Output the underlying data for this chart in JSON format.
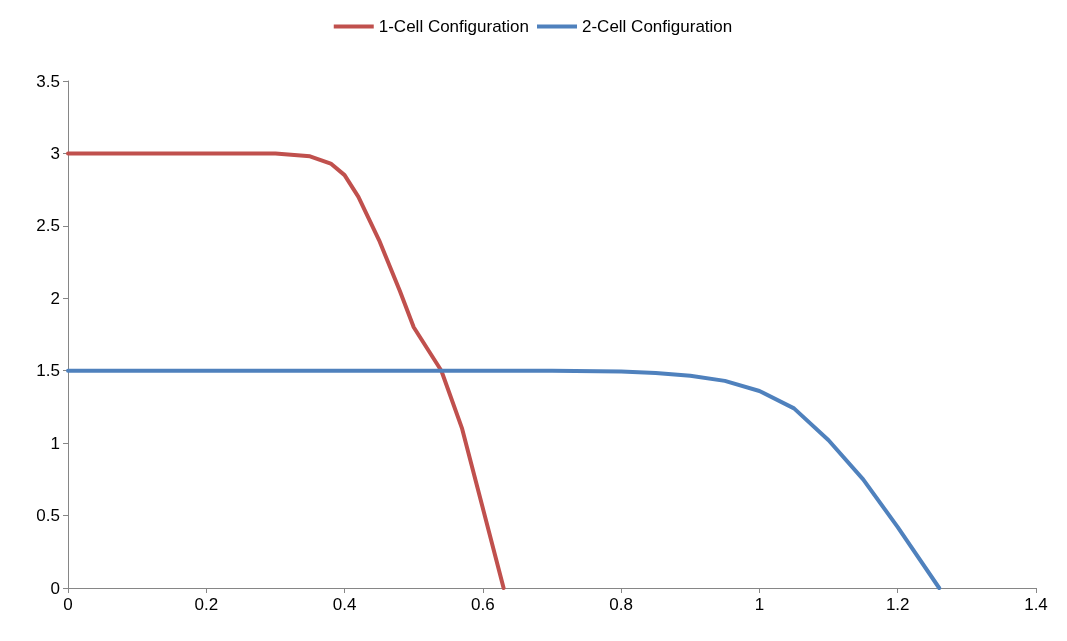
{
  "chart_data": {
    "type": "line",
    "xlim": [
      0,
      1.4
    ],
    "xticks": [
      0,
      0.2,
      0.4,
      0.6,
      0.8,
      1,
      1.2,
      1.4
    ],
    "ylim": [
      0,
      3.5
    ],
    "yticks": [
      0,
      0.5,
      1,
      1.5,
      2,
      2.5,
      3,
      3.5
    ],
    "grid": false,
    "legend": "top",
    "marker": "none",
    "line_style": "solid",
    "series": [
      {
        "name": "1-Cell Configuration",
        "color": "#c0504d",
        "x": [
          0,
          0.1,
          0.2,
          0.3,
          0.35,
          0.38,
          0.4,
          0.42,
          0.45,
          0.48,
          0.5,
          0.54,
          0.57,
          0.6,
          0.63
        ],
        "values": [
          3,
          3,
          3,
          3,
          2.98,
          2.93,
          2.85,
          2.7,
          2.4,
          2.05,
          1.8,
          1.5,
          1.1,
          0.55,
          0
        ]
      },
      {
        "name": "2-Cell Configuration",
        "color": "#4f81bd",
        "x": [
          0,
          0.2,
          0.4,
          0.6,
          0.7,
          0.8,
          0.85,
          0.9,
          0.95,
          1,
          1.05,
          1.1,
          1.15,
          1.2,
          1.26
        ],
        "values": [
          1.5,
          1.5,
          1.5,
          1.5,
          1.5,
          1.495,
          1.485,
          1.465,
          1.43,
          1.36,
          1.24,
          1.02,
          0.75,
          0.42,
          0
        ]
      }
    ]
  }
}
